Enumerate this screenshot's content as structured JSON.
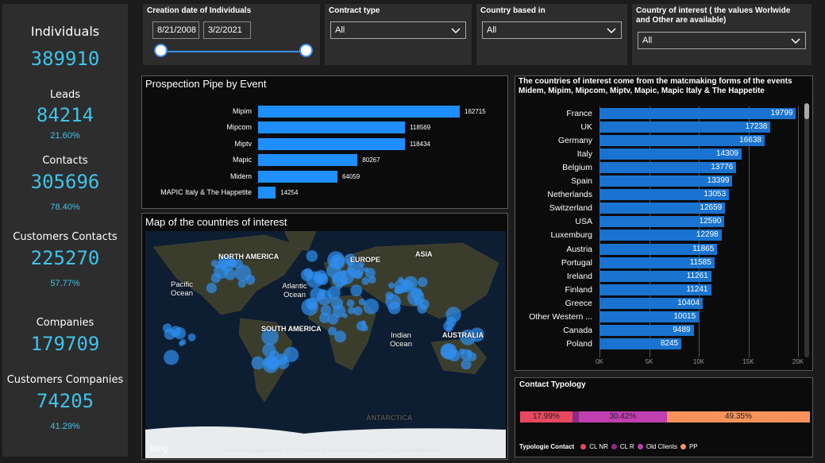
{
  "kpis": [
    {
      "label": "Individuals",
      "value": "389910"
    },
    {
      "label": "Leads",
      "value": "84214",
      "share": "21.60%"
    },
    {
      "label": "Contacts",
      "value": "305696",
      "share": "78.40%"
    },
    {
      "label": "Customers Contacts",
      "value": "225270",
      "share": "57.77%"
    },
    {
      "label": "Companies",
      "value": "179709"
    },
    {
      "label": "Customers Companies",
      "value": "74205",
      "share": "41.29%"
    }
  ],
  "filters": {
    "date": {
      "label": "Creation date of Individuals",
      "start": "8/21/2008",
      "end": "3/2/2021"
    },
    "dropdowns": [
      {
        "label": "Contract type",
        "value": "All"
      },
      {
        "label": "Country based in",
        "value": "All"
      },
      {
        "label": "Country of interest ( the values Worlwide and Other are available)",
        "value": "All"
      }
    ]
  },
  "map": {
    "title": "Map of the countries of interest",
    "labels": [
      "NORTH AMERICA",
      "Pacific Ocean",
      "Atlantic Ocean",
      "EUROPE",
      "ASIA",
      "SOUTH AMERICA",
      "Indian Ocean",
      "AUSTRALIA",
      "ANTARCTICA"
    ],
    "logo": "Bing",
    "attribution": "Earthstar Geographics SIO, © 2021 TomTom, © 2021 Microsoft Corporation, © OpenStreetMap Terms"
  },
  "chart_data": [
    {
      "type": "bar",
      "title": "Prospection Pipe by Event",
      "color": "#1f8fff",
      "categories": [
        "Mipim",
        "Mipcom",
        "Miptv",
        "Mapic",
        "Midem",
        "MAPIC Italy & The Happetite"
      ],
      "values": [
        162715,
        118569,
        118434,
        80267,
        64059,
        14254
      ]
    },
    {
      "type": "bar",
      "title": "The countries of interest come from the matcmaking forms of the events Midem, Mipim, Mipcom, Miptv, Mapic, Mapic Italy & The Happetite",
      "color": "#1a73d0",
      "grid": true,
      "categories": [
        "France",
        "UK",
        "Germany",
        "Italy",
        "Belgium",
        "Spain",
        "Netherlands",
        "Switzerland",
        "USA",
        "Luxemburg",
        "Austria",
        "Portugal",
        "Ireland",
        "Finland",
        "Greece",
        "Other Western ...",
        "Canada",
        "Poland"
      ],
      "values": [
        19799,
        17238,
        16638,
        14309,
        13776,
        13399,
        13053,
        12659,
        12590,
        12298,
        11865,
        11585,
        11261,
        11241,
        10404,
        10015,
        9489,
        8245
      ],
      "xlim": [
        0,
        20000
      ],
      "xticks": [
        {
          "value": 0,
          "label": "0K"
        },
        {
          "value": 5000,
          "label": "5K"
        },
        {
          "value": 10000,
          "label": "10K"
        },
        {
          "value": 15000,
          "label": "15K"
        },
        {
          "value": 20000,
          "label": "20K"
        }
      ]
    },
    {
      "type": "stacked-bar",
      "title": "Contact Typology",
      "legend_title": "Typologie Contact",
      "series": [
        {
          "name": "CL NR",
          "color": "#e8485f",
          "values": [
            17.99
          ],
          "value_labels": [
            "17.99%"
          ]
        },
        {
          "name": "CL R",
          "color": "#8e2a86",
          "values": [
            2.24
          ]
        },
        {
          "name": "Old Clients",
          "color": "#c03fb0",
          "values": [
            30.42
          ],
          "value_labels": [
            "30.42%"
          ]
        },
        {
          "name": "PP",
          "color": "#f7935a",
          "values": [
            49.35
          ],
          "value_labels": [
            "49.35%"
          ]
        }
      ]
    }
  ]
}
